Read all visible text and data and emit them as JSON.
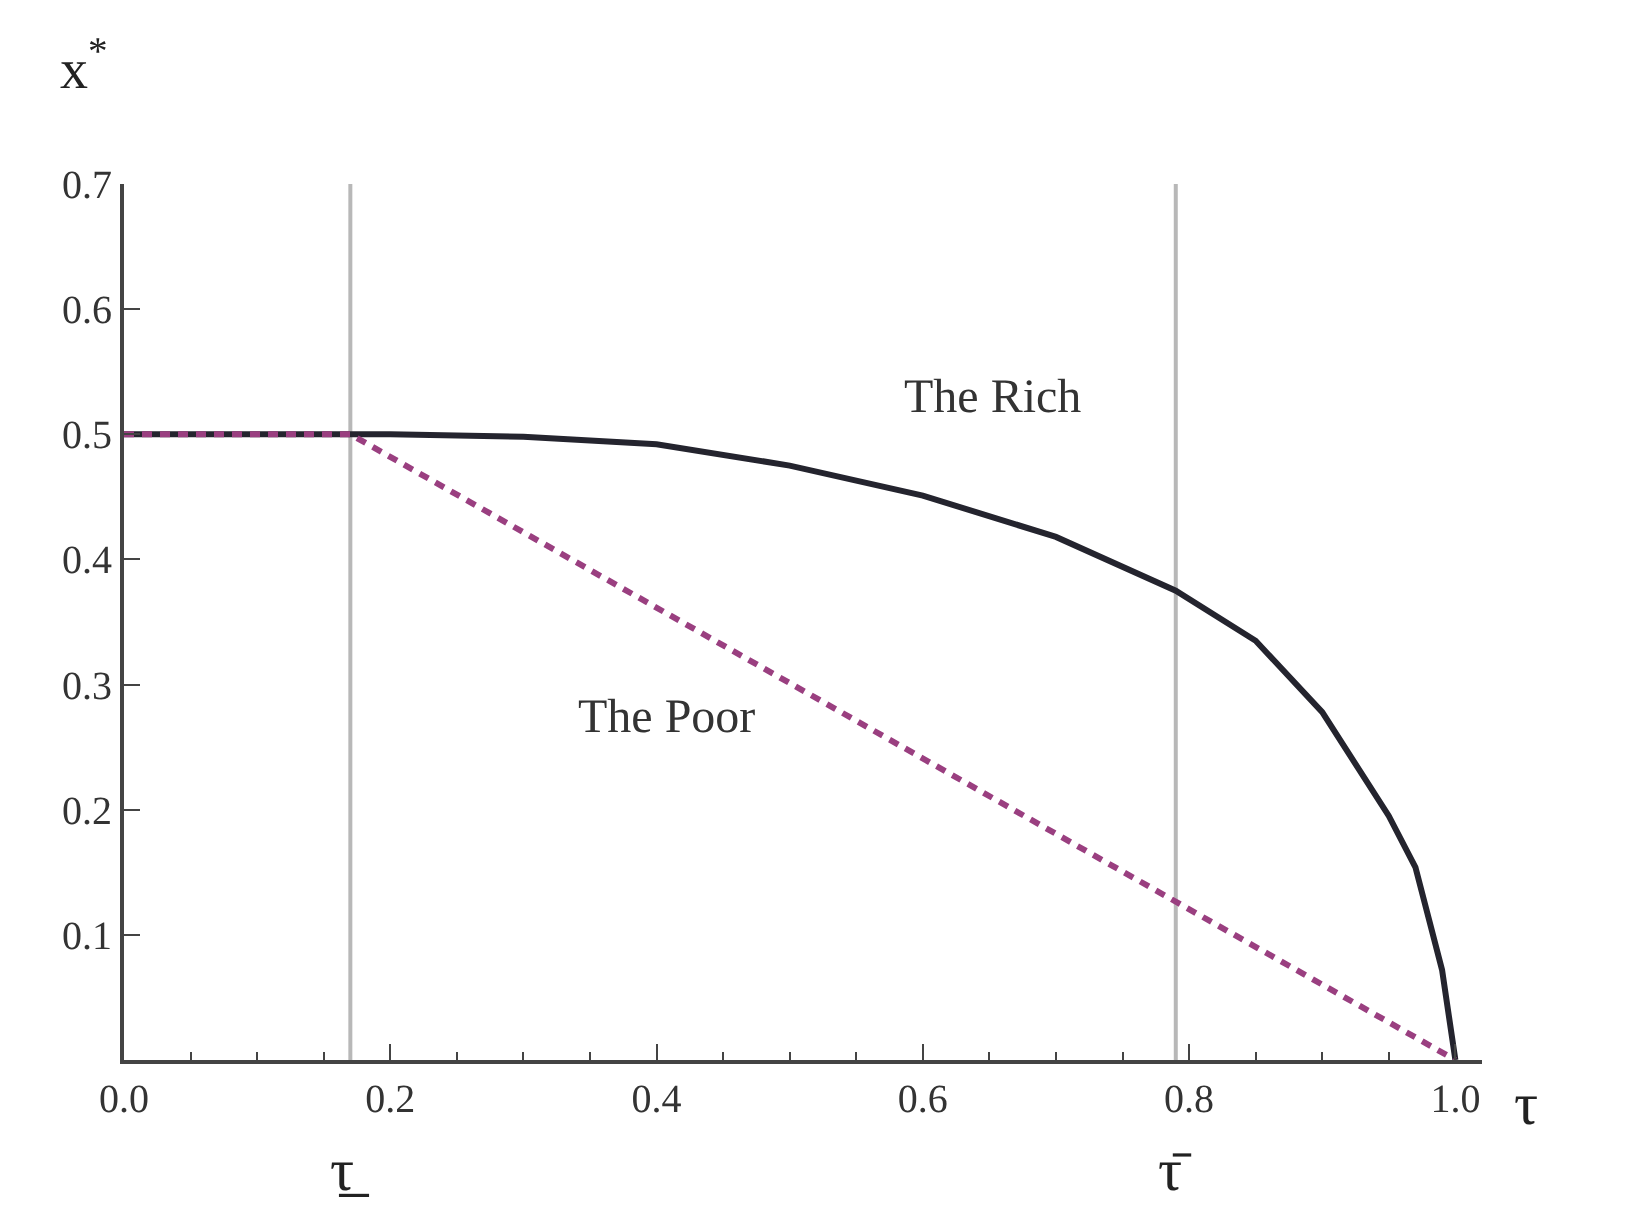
{
  "chart_data": {
    "type": "line",
    "ylabel": "x$^{*}$",
    "xlabel": "τ",
    "xlim": [
      0,
      1.02
    ],
    "xticks": [
      {
        "value": 0,
        "label": "0.0"
      },
      0.2,
      0.4,
      0.6,
      0.8,
      {
        "value": 1,
        "label": "1.0"
      }
    ],
    "ylim": [
      0,
      0.7
    ],
    "yticks": [
      0.1,
      0.2,
      0.3,
      0.4,
      0.5,
      0.6,
      0.7
    ],
    "marker": "none",
    "series": [
      {
        "color": "#24242e",
        "line_style": "solid",
        "x": [
          0,
          0.17,
          0.2,
          0.3,
          0.4,
          0.5,
          0.6,
          0.7,
          0.79,
          0.85,
          0.9,
          0.95,
          0.97,
          0.98,
          0.99,
          1.0
        ],
        "values": [
          0.5,
          0.5,
          0.5,
          0.498,
          0.492,
          0.475,
          0.451,
          0.418,
          0.375,
          0.335,
          0.278,
          0.195,
          0.154,
          0.113,
          0.072,
          0
        ]
      },
      {
        "color": "#9a3f80",
        "line_style": "dashed",
        "x": [
          0,
          0.17,
          1.0
        ],
        "values": [
          0.5,
          0.5,
          0
        ]
      }
    ],
    "ref_lines": [
      {
        "axis": "x",
        "value": 0.17,
        "label": "τ̲",
        "color": "#b8b8b8"
      },
      {
        "axis": "x",
        "value": 0.79,
        "label": "τ̄",
        "color": "#b8b8b8"
      }
    ],
    "annotations": [
      "The Rich",
      "The Poor"
    ]
  }
}
